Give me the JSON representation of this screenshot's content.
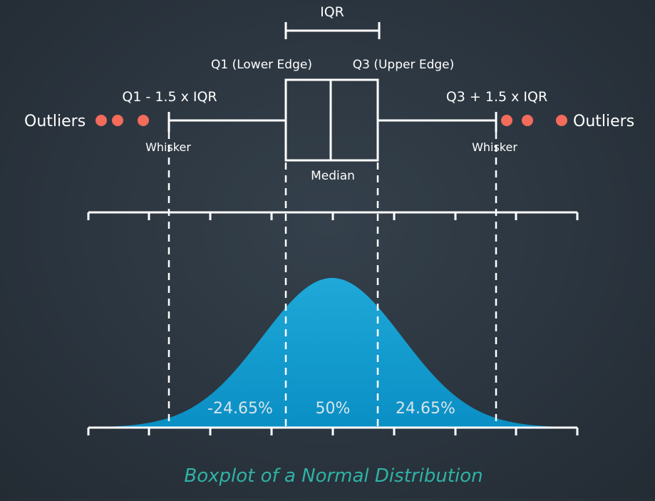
{
  "diagram": {
    "iqr_label": "IQR",
    "q1_label": "Q1 (Lower Edge)",
    "q3_label": "Q3 (Upper Edge)",
    "lower_fence_label": "Q1 - 1.5 x IQR",
    "upper_fence_label": "Q3 + 1.5 x IQR",
    "left_outliers_label": "Outliers",
    "right_outliers_label": "Outliers",
    "left_whisker_label": "Whisker",
    "right_whisker_label": "Whisker",
    "median_label": "Median",
    "left_tail_percent": "-24.65%",
    "center_percent": "50%",
    "right_tail_percent": "24.65%",
    "caption": "Boxplot of a Normal Distribution"
  },
  "colors": {
    "background": "#2b353f",
    "line": "#ffffff",
    "outlier": "#f26b5b",
    "curve_top": "#1fa8d8",
    "curve_bottom": "#0a8fc4",
    "caption": "#2fb3a5",
    "percent_text": "#d9e4ec"
  }
}
